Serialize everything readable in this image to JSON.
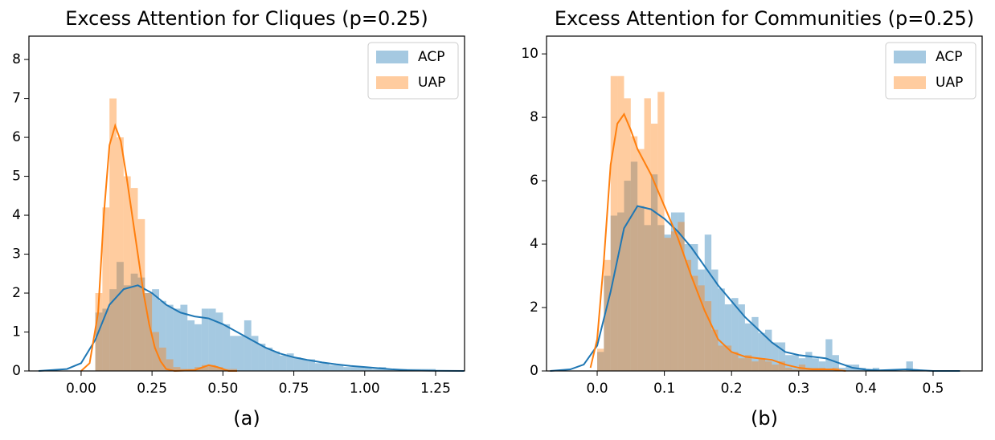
{
  "chart_data": [
    {
      "type": "histogram",
      "title": "Excess Attention for Cliques (p=0.25)",
      "caption": "(a)",
      "xlim": [
        -0.184,
        1.352
      ],
      "ylim": [
        0,
        8.6
      ],
      "xticks": [
        {
          "value": 0,
          "label": "0.00"
        },
        0.25,
        {
          "value": 0.5,
          "label": "0.50"
        },
        0.75,
        {
          "value": 1,
          "label": "1.00"
        },
        1.25
      ],
      "yticks": [
        0,
        1,
        2,
        3,
        4,
        5,
        6,
        7,
        8
      ],
      "legend": "upper right",
      "series": [
        {
          "name": "ACP",
          "color": "#1f77b4",
          "bins": [
            0.05,
            0.075,
            0.1,
            0.125,
            0.15,
            0.175,
            0.2,
            0.225,
            0.25,
            0.275,
            0.3,
            0.325,
            0.35,
            0.375,
            0.4,
            0.425,
            0.45,
            0.475,
            0.5,
            0.525,
            0.55,
            0.575,
            0.6,
            0.625,
            0.65,
            0.675,
            0.7,
            0.725,
            0.75,
            0.775,
            0.8,
            0.825,
            0.85,
            0.875,
            0.9,
            0.925,
            0.95,
            0.975,
            1.0,
            1.025,
            1.05,
            1.075,
            1.1,
            1.125,
            1.15,
            1.175,
            1.2,
            1.225,
            1.25
          ],
          "values": [
            1.5,
            1.6,
            2.1,
            2.8,
            2.2,
            2.5,
            2.4,
            2.0,
            2.1,
            1.8,
            1.7,
            1.6,
            1.7,
            1.3,
            1.2,
            1.6,
            1.6,
            1.5,
            1.2,
            0.9,
            0.9,
            1.3,
            0.9,
            0.7,
            0.6,
            0.5,
            0.4,
            0.45,
            0.35,
            0.3,
            0.3,
            0.2,
            0.2,
            0.15,
            0.15,
            0.1,
            0.1,
            0.1,
            0.1,
            0.05,
            0.1,
            0.05,
            0.05,
            0.05,
            0.05,
            0.05,
            0.05,
            0.05
          ],
          "kde_x": [
            -0.15,
            -0.05,
            0,
            0.05,
            0.1,
            0.15,
            0.2,
            0.25,
            0.3,
            0.35,
            0.4,
            0.45,
            0.5,
            0.55,
            0.6,
            0.65,
            0.7,
            0.75,
            0.8,
            0.85,
            0.9,
            0.95,
            1.0,
            1.05,
            1.1,
            1.15,
            1.2,
            1.25,
            1.35
          ],
          "kde_y": [
            0,
            0.05,
            0.2,
            0.8,
            1.7,
            2.1,
            2.2,
            2.0,
            1.7,
            1.5,
            1.4,
            1.35,
            1.2,
            1.0,
            0.8,
            0.6,
            0.45,
            0.35,
            0.28,
            0.22,
            0.17,
            0.13,
            0.1,
            0.07,
            0.04,
            0.02,
            0.01,
            0.005,
            0
          ]
        },
        {
          "name": "UAP",
          "color": "#ff7f0e",
          "bins": [
            0.05,
            0.075,
            0.1,
            0.125,
            0.15,
            0.175,
            0.2,
            0.225,
            0.25,
            0.275,
            0.3,
            0.325,
            0.35,
            0.375,
            0.4,
            0.425,
            0.45,
            0.475,
            0.5,
            0.525,
            0.55
          ],
          "values": [
            2.0,
            4.2,
            7.0,
            6.0,
            5.0,
            4.7,
            3.9,
            2.0,
            1.0,
            0.6,
            0.3,
            0.1,
            0.05,
            0.05,
            0.1,
            0.15,
            0.15,
            0.1,
            0.05,
            0.05
          ],
          "kde_x": [
            0,
            0.03,
            0.06,
            0.08,
            0.1,
            0.12,
            0.14,
            0.16,
            0.18,
            0.2,
            0.22,
            0.24,
            0.26,
            0.28,
            0.3,
            0.33,
            0.4,
            0.45,
            0.48,
            0.52,
            0.55
          ],
          "kde_y": [
            0,
            0.2,
            1.5,
            4.0,
            5.8,
            6.3,
            5.9,
            5.0,
            4.0,
            3.0,
            2.0,
            1.2,
            0.6,
            0.25,
            0.05,
            0,
            0.02,
            0.15,
            0.1,
            0,
            0
          ]
        }
      ]
    },
    {
      "type": "histogram",
      "title": "Excess Attention for Communities (p=0.25)",
      "caption": "(b)",
      "xlim": [
        -0.0754,
        0.573
      ],
      "ylim": [
        0,
        10.56
      ],
      "xticks": [
        {
          "value": 0,
          "label": "0.0"
        },
        0.1,
        0.2,
        0.3,
        0.4,
        0.5
      ],
      "yticks": [
        0,
        2,
        4,
        6,
        8,
        10
      ],
      "legend": "upper right",
      "series": [
        {
          "name": "ACP",
          "color": "#1f77b4",
          "bins": [
            0,
            0.01,
            0.02,
            0.03,
            0.04,
            0.05,
            0.06,
            0.07,
            0.08,
            0.09,
            0.1,
            0.11,
            0.12,
            0.13,
            0.14,
            0.15,
            0.16,
            0.17,
            0.18,
            0.19,
            0.2,
            0.21,
            0.22,
            0.23,
            0.24,
            0.25,
            0.26,
            0.27,
            0.28,
            0.29,
            0.3,
            0.31,
            0.32,
            0.33,
            0.34,
            0.35,
            0.36,
            0.37,
            0.38,
            0.39,
            0.4,
            0.41,
            0.42,
            0.43,
            0.44,
            0.45,
            0.46,
            0.47
          ],
          "values": [
            0.6,
            3.0,
            4.9,
            5.0,
            6.0,
            6.6,
            5.2,
            4.6,
            6.2,
            4.6,
            4.3,
            5.0,
            5.0,
            4.0,
            4.0,
            3.2,
            4.3,
            3.2,
            2.6,
            2.1,
            2.3,
            2.1,
            1.5,
            1.7,
            1.2,
            1.3,
            0.9,
            0.9,
            0.5,
            0.5,
            0.4,
            0.6,
            0.4,
            0.3,
            1.0,
            0.5,
            0.1,
            0.2,
            0.2,
            0.1,
            0,
            0.1,
            0,
            0,
            0,
            0,
            0.3
          ],
          "kde_x": [
            -0.07,
            -0.04,
            -0.02,
            0,
            0.02,
            0.04,
            0.06,
            0.08,
            0.1,
            0.12,
            0.14,
            0.16,
            0.18,
            0.2,
            0.22,
            0.24,
            0.26,
            0.28,
            0.3,
            0.32,
            0.34,
            0.36,
            0.38,
            0.4,
            0.42,
            0.46,
            0.5,
            0.54
          ],
          "kde_y": [
            0,
            0.05,
            0.2,
            0.8,
            2.5,
            4.5,
            5.2,
            5.1,
            4.8,
            4.4,
            3.9,
            3.3,
            2.7,
            2.2,
            1.7,
            1.3,
            0.9,
            0.6,
            0.5,
            0.45,
            0.4,
            0.25,
            0.1,
            0.04,
            0.02,
            0.05,
            0,
            0
          ]
        },
        {
          "name": "UAP",
          "color": "#ff7f0e",
          "bins": [
            0,
            0.01,
            0.02,
            0.03,
            0.04,
            0.05,
            0.06,
            0.07,
            0.08,
            0.09,
            0.1,
            0.11,
            0.12,
            0.13,
            0.14,
            0.15,
            0.16,
            0.17,
            0.18,
            0.19,
            0.2,
            0.21,
            0.22,
            0.23,
            0.24,
            0.25,
            0.26,
            0.27,
            0.28,
            0.29,
            0.3,
            0.31,
            0.32,
            0.33,
            0.34,
            0.35,
            0.36
          ],
          "values": [
            0.7,
            3.5,
            9.3,
            9.3,
            8.6,
            7.4,
            7.0,
            8.6,
            7.8,
            8.8,
            4.2,
            4.4,
            4.7,
            3.5,
            3.0,
            2.7,
            2.2,
            1.3,
            0.8,
            0.8,
            0.6,
            0.4,
            0.5,
            0.3,
            0.4,
            0.3,
            0.2,
            0.3,
            0.1,
            0.05,
            0.2,
            0.1,
            0.1,
            0.1,
            0.05,
            0.1
          ],
          "kde_x": [
            -0.01,
            0,
            0.01,
            0.02,
            0.03,
            0.04,
            0.05,
            0.06,
            0.08,
            0.1,
            0.12,
            0.14,
            0.16,
            0.18,
            0.2,
            0.22,
            0.24,
            0.26,
            0.28,
            0.3,
            0.32,
            0.35,
            0.37
          ],
          "kde_y": [
            0.1,
            1.0,
            3.5,
            6.5,
            7.8,
            8.1,
            7.6,
            7.0,
            6.2,
            5.2,
            4.2,
            3.0,
            1.9,
            1.0,
            0.6,
            0.45,
            0.4,
            0.35,
            0.2,
            0.1,
            0.05,
            0.05,
            0
          ]
        }
      ]
    }
  ]
}
